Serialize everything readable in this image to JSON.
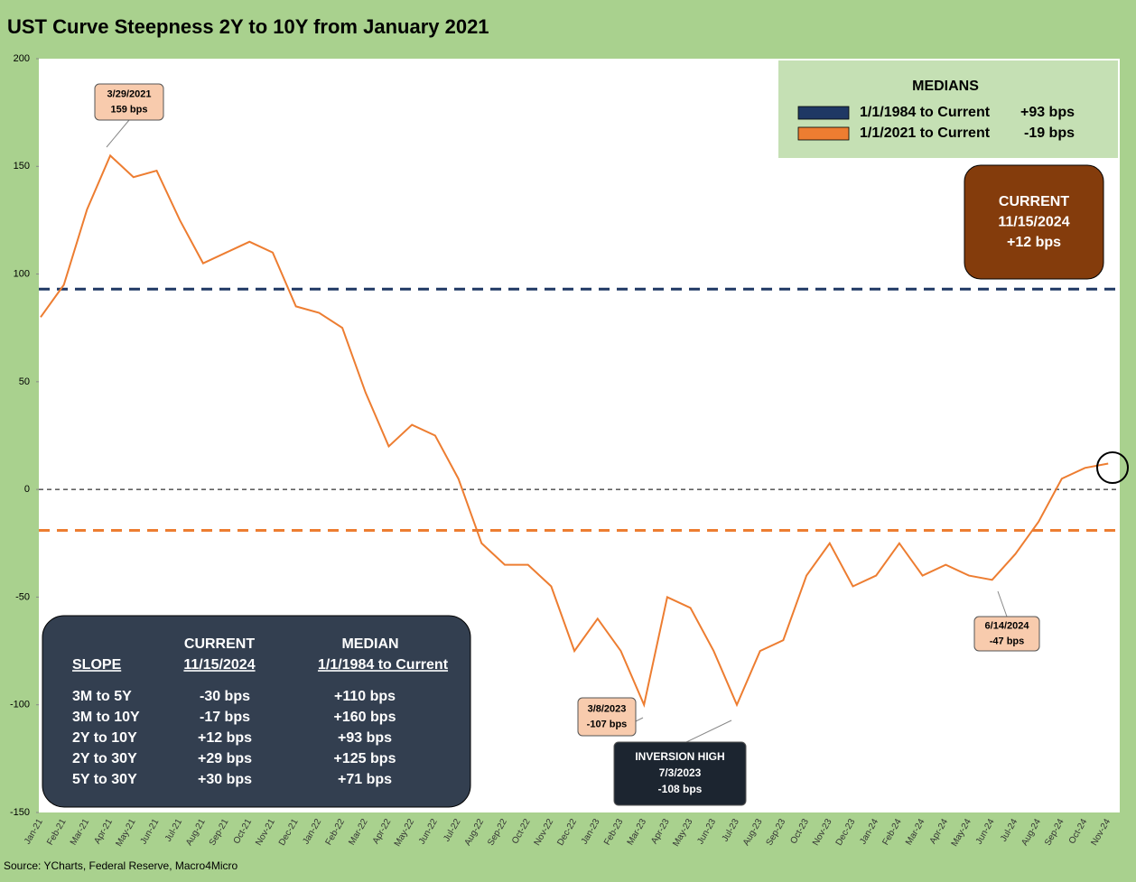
{
  "chart_data": {
    "type": "line",
    "title": "UST Curve Steepness 2Y to 10Y from January 2021",
    "categories": [
      "Jan-21",
      "Feb-21",
      "Mar-21",
      "Apr-21",
      "May-21",
      "Jun-21",
      "Jul-21",
      "Aug-21",
      "Sep-21",
      "Oct-21",
      "Nov-21",
      "Dec-21",
      "Jan-22",
      "Feb-22",
      "Mar-22",
      "Apr-22",
      "May-22",
      "Jun-22",
      "Jul-22",
      "Aug-22",
      "Sep-22",
      "Oct-22",
      "Nov-22",
      "Dec-22",
      "Jan-23",
      "Feb-23",
      "Mar-23",
      "Apr-23",
      "May-23",
      "Jun-23",
      "Jul-23",
      "Aug-23",
      "Sep-23",
      "Oct-23",
      "Nov-23",
      "Dec-23",
      "Jan-24",
      "Feb-24",
      "Mar-24",
      "Apr-24",
      "May-24",
      "Jun-24",
      "Jul-24",
      "Aug-24",
      "Sep-24",
      "Oct-24",
      "Nov-24"
    ],
    "values": [
      80,
      95,
      130,
      155,
      145,
      148,
      125,
      105,
      110,
      115,
      110,
      85,
      82,
      75,
      45,
      20,
      30,
      25,
      5,
      -25,
      -35,
      -35,
      -45,
      -75,
      -60,
      -75,
      -100,
      -50,
      -55,
      -75,
      -100,
      -75,
      -70,
      -40,
      -25,
      -45,
      -40,
      -25,
      -40,
      -35,
      -40,
      -42,
      -30,
      -15,
      5,
      10,
      12
    ],
    "color": "#ed7d31",
    "ylim": [
      -150,
      200
    ],
    "yticks": [
      -150,
      -100,
      -50,
      0,
      50,
      100,
      150,
      200
    ],
    "medians": {
      "title": "MEDIANS",
      "items": [
        {
          "name": "1/1/1984 to Current",
          "label": "+93 bps",
          "value": 93,
          "color": "#1f3864"
        },
        {
          "name": "1/1/2021 to Current",
          "label": "-19 bps",
          "value": -19,
          "color": "#ed7d31"
        }
      ]
    },
    "current": {
      "title": "CURRENT",
      "date": "11/15/2024",
      "label": "+12 bps"
    },
    "annotations": [
      [
        "3/29/2021",
        "159 bps"
      ],
      [
        "3/8/2023",
        "-107 bps"
      ],
      [
        "6/14/2024",
        "-47 bps"
      ],
      [
        "INVERSION HIGH",
        "7/3/2023",
        "-108 bps"
      ]
    ],
    "table": {
      "header": [
        [
          "",
          "CURRENT",
          "MEDIAN"
        ],
        [
          "SLOPE",
          "11/15/2024",
          "1/1/1984 to Current"
        ]
      ],
      "rows": [
        [
          "3M to 5Y",
          "-30 bps",
          "+110 bps"
        ],
        [
          "3M to 10Y",
          "-17 bps",
          "+160 bps"
        ],
        [
          "2Y to 10Y",
          "+12 bps",
          "+93 bps"
        ],
        [
          "2Y to 30Y",
          "+29 bps",
          "+125 bps"
        ],
        [
          "5Y to 30Y",
          "+30 bps",
          "+71 bps"
        ]
      ]
    },
    "source": "Source: YCharts, Federal Reserve, Macro4Micro"
  }
}
